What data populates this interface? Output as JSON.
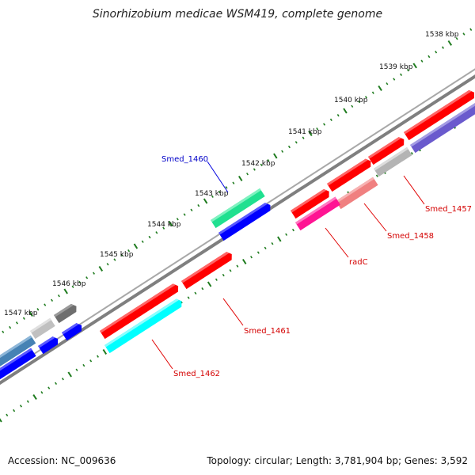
{
  "title": "Sinorhizobium medicae WSM419, complete genome",
  "footer": {
    "accession": "Accession: NC_009636",
    "summary": "Topology: circular; Length: 3,781,904 bp; Genes: 3,592"
  },
  "colors": {
    "backbone": "#7f7f7f",
    "ticks": "#1e7b1e",
    "label_red": "#d40000",
    "label_blue": "#0000c8",
    "leader_red": "#e00000",
    "leader_blue": "#0000e0"
  },
  "scale_labels": [
    "1538 kbp",
    "1539 kbp",
    "1540 kbp",
    "1541 kbp",
    "1542 kbp",
    "1543 kbp",
    "1544 kbp",
    "1545 kbp",
    "1546 kbp",
    "1547 kbp"
  ],
  "gene_labels": [
    {
      "id": "smed-1457",
      "text": "Smed_1457",
      "color": "red"
    },
    {
      "id": "smed-1458",
      "text": "Smed_1458",
      "color": "red"
    },
    {
      "id": "radc",
      "text": "radC",
      "color": "red"
    },
    {
      "id": "smed-1461",
      "text": "Smed_1461",
      "color": "red"
    },
    {
      "id": "smed-1462",
      "text": "Smed_1462",
      "color": "red"
    },
    {
      "id": "smed-1460",
      "text": "Smed_1460",
      "color": "blue"
    }
  ],
  "features": [
    {
      "name": "feature-red-forward",
      "color": "#ff0000"
    },
    {
      "name": "feature-purple",
      "color": "#6a5acd"
    },
    {
      "name": "feature-grey",
      "color": "#b4b4b4"
    },
    {
      "name": "feature-salmon",
      "color": "#f08080"
    },
    {
      "name": "feature-pink",
      "color": "#ff1493"
    },
    {
      "name": "feature-green",
      "color": "#20e090"
    },
    {
      "name": "feature-blue",
      "color": "#0000ff"
    },
    {
      "name": "feature-cyan",
      "color": "#00ffff"
    },
    {
      "name": "feature-dark-grey",
      "color": "#6e6e6e"
    },
    {
      "name": "feature-steel-blue",
      "color": "#4682b4"
    }
  ]
}
